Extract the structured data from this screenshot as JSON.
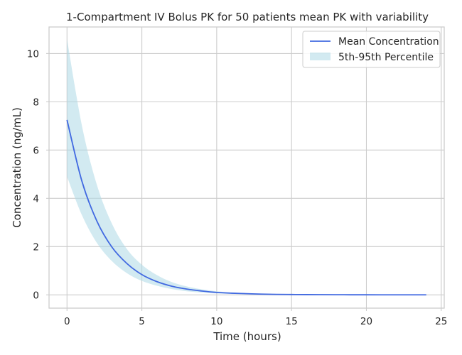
{
  "chart_data": {
    "type": "line",
    "title": "1-Compartment IV Bolus PK for 50 patients mean PK with variability",
    "xlabel": "Time (hours)",
    "ylabel": "Concentration (ng/mL)",
    "xlim": [
      -1.2,
      25.2
    ],
    "ylim": [
      -0.55,
      11.1
    ],
    "xticks": [
      0,
      5,
      10,
      15,
      20,
      25
    ],
    "yticks": [
      0,
      2,
      4,
      6,
      8,
      10
    ],
    "grid": true,
    "legend": {
      "position": "top-right",
      "entries": [
        "Mean Concentration",
        "5th-95th Percentile"
      ]
    },
    "colors": {
      "mean": "#4169e1",
      "band_fill": "#add8e6",
      "grid": "#cccccc"
    },
    "series": [
      {
        "name": "Mean Concentration",
        "kind": "line",
        "x": [
          0,
          1,
          2,
          3,
          4,
          5,
          6,
          7,
          8,
          9,
          10,
          11,
          12,
          13,
          14,
          15,
          16,
          17,
          18,
          19,
          20,
          21,
          22,
          23,
          24
        ],
        "values": [
          7.25,
          4.7,
          3.05,
          1.98,
          1.3,
          0.84,
          0.55,
          0.36,
          0.24,
          0.16,
          0.1,
          0.07,
          0.05,
          0.03,
          0.02,
          0.015,
          0.01,
          0.008,
          0.006,
          0.004,
          0.003,
          0.002,
          0.0015,
          0.001,
          0.001
        ]
      },
      {
        "name": "5th-95th Percentile",
        "kind": "band",
        "x": [
          0,
          1,
          2,
          3,
          4,
          5,
          6,
          7,
          8,
          9,
          10,
          11,
          12,
          13,
          14,
          15,
          16,
          17,
          18,
          19,
          20,
          21,
          22,
          23,
          24
        ],
        "lower": [
          4.9,
          3.3,
          2.15,
          1.4,
          0.9,
          0.58,
          0.38,
          0.24,
          0.15,
          0.1,
          0.06,
          0.04,
          0.025,
          0.015,
          0.01,
          0.006,
          0.004,
          0.003,
          0.002,
          0.001,
          0.001,
          0.0,
          0.0,
          0.0,
          0.0
        ],
        "upper": [
          10.6,
          7.0,
          4.55,
          2.95,
          1.9,
          1.25,
          0.82,
          0.53,
          0.35,
          0.23,
          0.15,
          0.1,
          0.065,
          0.04,
          0.027,
          0.018,
          0.012,
          0.008,
          0.005,
          0.004,
          0.003,
          0.002,
          0.0015,
          0.001,
          0.001
        ]
      }
    ]
  }
}
